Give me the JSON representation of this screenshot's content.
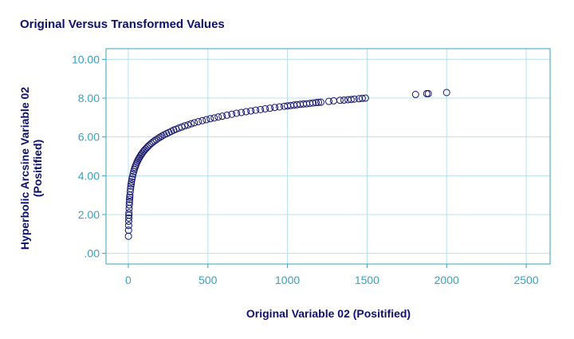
{
  "chart_data": {
    "type": "scatter",
    "title": "Original Versus Transformed Values",
    "xlabel": "Original Variable 02 (Positified)",
    "ylabel": [
      "Hyperbolic Arcsine Variable 02",
      "(Positified)"
    ],
    "xlim": [
      -140,
      2650
    ],
    "ylim": [
      -0.55,
      10.55
    ],
    "x_ticks": [
      0,
      500,
      1000,
      1500,
      2000,
      2500
    ],
    "x_tick_labels": [
      "0",
      "500",
      "1000",
      "1500",
      "2000",
      "2500"
    ],
    "y_ticks": [
      0,
      2,
      4,
      6,
      8,
      10
    ],
    "y_tick_labels": [
      ".00",
      "2.00",
      "4.00",
      "6.00",
      "8.00",
      "10.00"
    ],
    "grid": true,
    "marker": "open-circle",
    "series": [
      {
        "x": [
          1,
          1.5,
          2,
          2.5,
          3,
          3.5,
          4,
          5,
          6,
          7,
          8,
          9,
          10,
          12,
          14,
          16,
          18,
          20,
          23,
          26,
          30,
          34,
          38,
          42,
          46,
          50,
          55,
          60,
          65,
          70,
          76,
          82,
          88,
          95,
          102,
          110,
          118,
          126,
          135,
          145,
          155,
          165,
          176,
          188,
          200,
          212,
          225,
          240,
          255,
          270,
          285,
          300,
          318,
          336,
          355,
          375,
          395,
          415,
          440,
          465,
          490,
          515,
          540,
          565,
          590,
          620,
          650,
          680,
          710,
          740,
          770,
          800,
          830,
          860,
          890,
          920,
          950,
          980,
          1000,
          1020,
          1040,
          1060,
          1080,
          1100,
          1120,
          1140,
          1160,
          1180,
          1195,
          1210,
          1260,
          1290,
          1330,
          1355,
          1380,
          1400,
          1420,
          1450,
          1470,
          1490,
          1805,
          1875,
          1885,
          2000
        ],
        "y": [
          0.88,
          1.19,
          1.44,
          1.65,
          1.82,
          1.97,
          2.09,
          2.31,
          2.49,
          2.64,
          2.78,
          2.89,
          3.0,
          3.18,
          3.33,
          3.47,
          3.58,
          3.69,
          3.83,
          3.95,
          4.09,
          4.22,
          4.33,
          4.43,
          4.52,
          4.61,
          4.7,
          4.79,
          4.87,
          4.94,
          5.02,
          5.1,
          5.17,
          5.25,
          5.32,
          5.39,
          5.46,
          5.53,
          5.6,
          5.67,
          5.74,
          5.8,
          5.86,
          5.93,
          5.99,
          6.05,
          6.11,
          6.17,
          6.23,
          6.29,
          6.35,
          6.4,
          6.46,
          6.51,
          6.57,
          6.62,
          6.68,
          6.73,
          6.79,
          6.84,
          6.89,
          6.94,
          6.98,
          7.03,
          7.07,
          7.12,
          7.17,
          7.22,
          7.26,
          7.3,
          7.34,
          7.38,
          7.41,
          7.45,
          7.48,
          7.52,
          7.55,
          7.58,
          7.6,
          7.62,
          7.64,
          7.66,
          7.68,
          7.7,
          7.71,
          7.73,
          7.75,
          7.77,
          7.78,
          7.79,
          7.83,
          7.86,
          7.89,
          7.9,
          7.92,
          7.93,
          7.95,
          7.97,
          7.99,
          8.0,
          8.19,
          8.23,
          8.23,
          8.29
        ]
      }
    ]
  }
}
